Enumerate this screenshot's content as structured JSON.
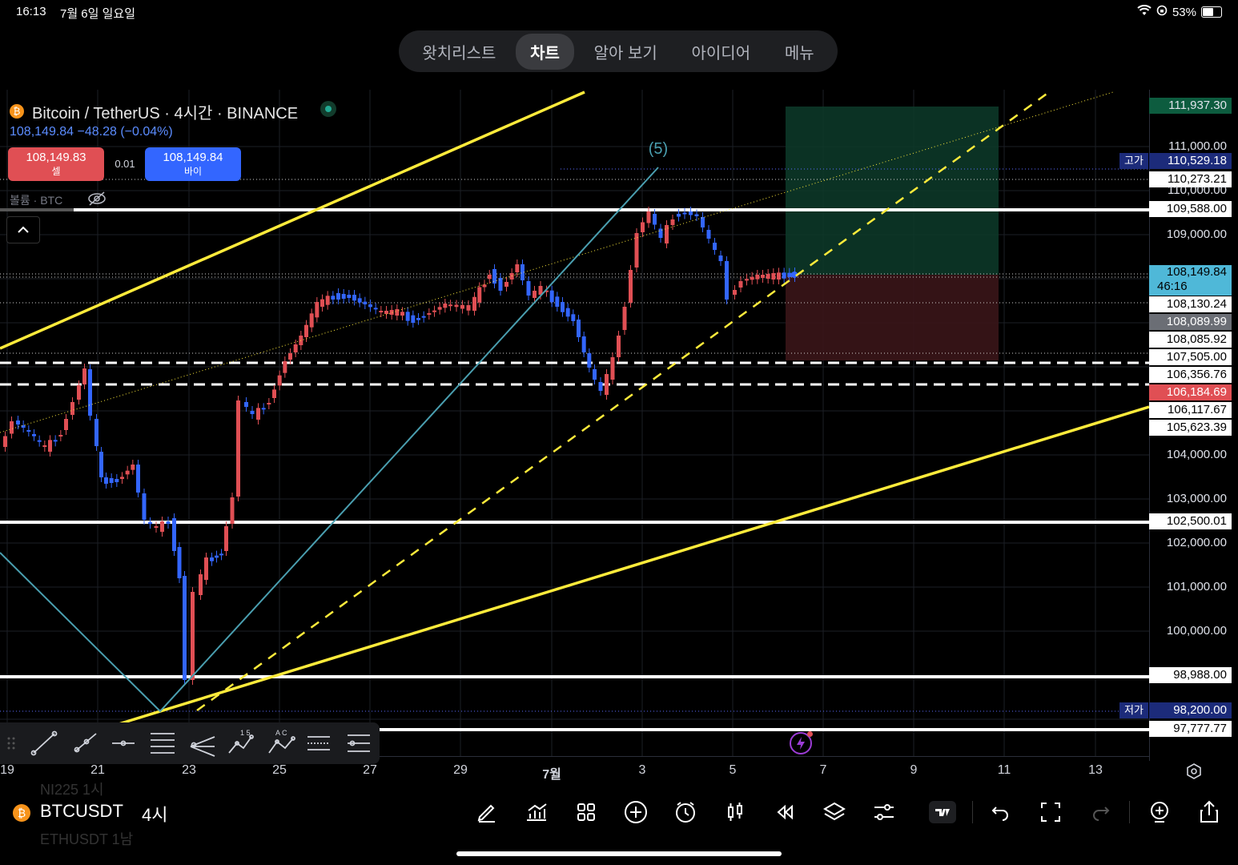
{
  "status_bar": {
    "time": "16:13",
    "date": "7월 6일 일요일",
    "battery": "53%"
  },
  "top_tabs": [
    {
      "label": "왓치리스트",
      "active": false
    },
    {
      "label": "차트",
      "active": true
    },
    {
      "label": "알아 보기",
      "active": false
    },
    {
      "label": "아이디어",
      "active": false
    },
    {
      "label": "메뉴",
      "active": false
    }
  ],
  "header": {
    "title": "Bitcoin / TetherUS · 4시간 · BINANCE",
    "price_change": "108,149.84  −48.28 (−0.04%)",
    "sell": {
      "price": "108,149.83",
      "label": "셀"
    },
    "buy": {
      "price": "108,149.84",
      "label": "바이"
    },
    "spread": "0.01",
    "volume_label": "볼륨 · BTC"
  },
  "wave_label": "(5)",
  "price_axis": {
    "labels": [
      {
        "text": "111,937.30",
        "style": "green"
      },
      {
        "text": "111,000.00",
        "style": "plain"
      },
      {
        "text": "110,529.18",
        "style": "navy",
        "tag": "고가"
      },
      {
        "text": "110,273.21",
        "style": "boxed"
      },
      {
        "text": "110,000.00",
        "style": "plain"
      },
      {
        "text": "109,588.00",
        "style": "boxed"
      },
      {
        "text": "109,000.00",
        "style": "plain"
      },
      {
        "text": "108,149.84",
        "style": "current",
        "sub": "46:16"
      },
      {
        "text": "108,130.24",
        "style": "boxed"
      },
      {
        "text": "108,089.99",
        "style": "gray"
      },
      {
        "text": "108,085.92",
        "style": "boxed"
      },
      {
        "text": "107,505.00",
        "style": "boxed"
      },
      {
        "text": "106,356.76",
        "style": "boxed"
      },
      {
        "text": "106,184.69",
        "style": "red"
      },
      {
        "text": "106,117.67",
        "style": "boxed"
      },
      {
        "text": "105,623.39",
        "style": "boxed"
      },
      {
        "text": "104,000.00",
        "style": "plain"
      },
      {
        "text": "103,000.00",
        "style": "plain"
      },
      {
        "text": "102,500.01",
        "style": "boxed"
      },
      {
        "text": "102,000.00",
        "style": "plain"
      },
      {
        "text": "101,000.00",
        "style": "plain"
      },
      {
        "text": "100,000.00",
        "style": "plain"
      },
      {
        "text": "98,988.00",
        "style": "boxed"
      },
      {
        "text": "98,200.00",
        "style": "navy",
        "tag": "저가"
      },
      {
        "text": "97,777.77",
        "style": "boxed"
      }
    ]
  },
  "time_axis": [
    "19",
    "21",
    "23",
    "25",
    "27",
    "29",
    "7월",
    "3",
    "5",
    "7",
    "9",
    "11",
    "13"
  ],
  "drawing_tools": [
    "trend-line-icon",
    "ray-icon",
    "horizontal-ray-icon",
    "fib-retracement-icon",
    "pitchfork-icon",
    "elliott-wave-icon",
    "abcd-pattern-icon",
    "parallel-channel-icon",
    "gann-fan-icon"
  ],
  "wave_tool_labels": {
    "elliott": "1 5",
    "abcd": "A C"
  },
  "bottom_bar": {
    "symbol": "BTCUSDT",
    "interval": "4시",
    "faded_above": "NI225   1시",
    "faded_below": "ETHUSDT   1남",
    "icons": [
      "pencil-icon",
      "indicator-icon",
      "grid-layout-icon",
      "add-icon",
      "alert-clock-icon",
      "candle-type-icon",
      "replay-icon",
      "layers-icon",
      "settings-sliders-icon",
      "tradingview-logo-icon",
      "undo-icon",
      "fullscreen-icon",
      "redo-icon",
      "add-watchlist-icon",
      "share-icon"
    ]
  },
  "colors": {
    "up": "#e04f54",
    "down": "#3366ff",
    "trend_yellow": "#ffeb3b",
    "wave_teal": "#4a9fb0",
    "tp_zone": "#0d3b2a",
    "sl_zone": "#3a1518",
    "current_price": "#4fb8d8"
  }
}
